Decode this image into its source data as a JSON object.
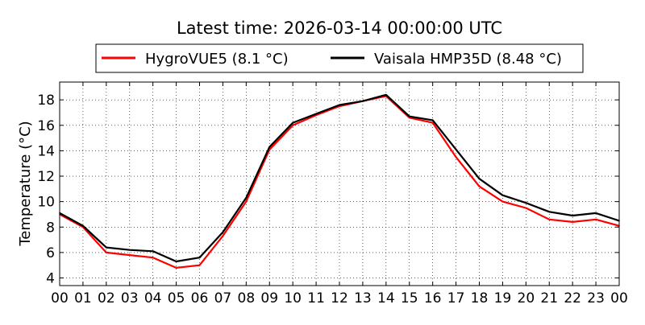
{
  "chart_data": {
    "type": "line",
    "title": "Latest time: 2026-03-14 00:00:00 UTC",
    "xlabel": "",
    "ylabel": "Temperature (°C)",
    "xlim": [
      0,
      24
    ],
    "ylim": [
      3.4,
      19.4
    ],
    "grid": true,
    "legend_position": "top-center",
    "x_ticks": [
      0,
      1,
      2,
      3,
      4,
      5,
      6,
      7,
      8,
      9,
      10,
      11,
      12,
      13,
      14,
      15,
      16,
      17,
      18,
      19,
      20,
      21,
      22,
      23,
      24
    ],
    "x_tick_labels": [
      "00",
      "01",
      "02",
      "03",
      "04",
      "05",
      "06",
      "07",
      "08",
      "09",
      "10",
      "11",
      "12",
      "13",
      "14",
      "15",
      "16",
      "17",
      "18",
      "19",
      "20",
      "21",
      "22",
      "23",
      "00"
    ],
    "y_ticks": [
      4,
      6,
      8,
      10,
      12,
      14,
      16,
      18
    ],
    "y_tick_labels": [
      "4",
      "6",
      "8",
      "10",
      "12",
      "14",
      "16",
      "18"
    ],
    "x": [
      0,
      1,
      2,
      3,
      4,
      5,
      6,
      7,
      8,
      9,
      10,
      11,
      12,
      13,
      14,
      15,
      16,
      17,
      18,
      19,
      20,
      21,
      22,
      23,
      24
    ],
    "series": [
      {
        "name": "HygroVUE5 (8.1 °C)",
        "color": "#ff0000",
        "values": [
          9.0,
          8.0,
          6.0,
          5.8,
          5.6,
          4.8,
          5.0,
          7.3,
          10.0,
          14.1,
          16.0,
          16.8,
          17.5,
          17.9,
          18.3,
          16.6,
          16.2,
          13.5,
          11.2,
          10.0,
          9.5,
          8.6,
          8.4,
          8.6,
          8.1
        ]
      },
      {
        "name": "Vaisala HMP35D (8.48 °C)",
        "color": "#000000",
        "values": [
          9.1,
          8.1,
          6.4,
          6.2,
          6.1,
          5.3,
          5.6,
          7.6,
          10.3,
          14.3,
          16.2,
          16.9,
          17.6,
          17.9,
          18.4,
          16.7,
          16.4,
          14.1,
          11.8,
          10.5,
          9.9,
          9.2,
          8.9,
          9.1,
          8.5
        ]
      }
    ]
  }
}
